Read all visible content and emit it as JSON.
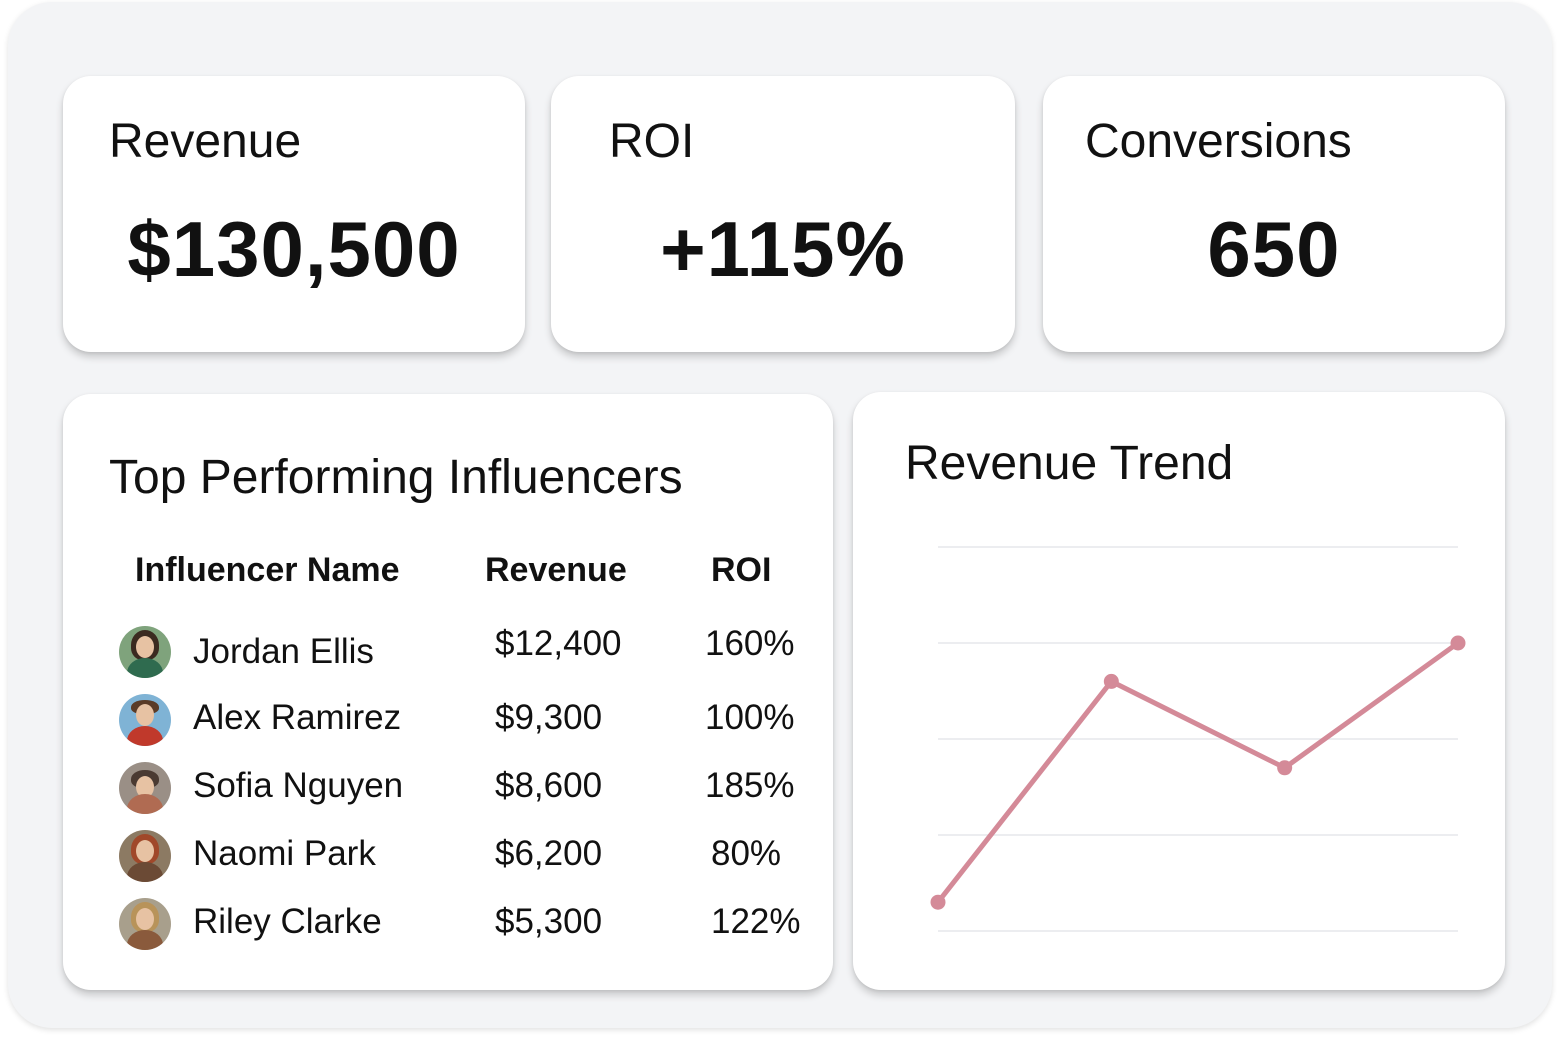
{
  "kpis": {
    "revenue": {
      "label": "Revenue",
      "value": "$130,500"
    },
    "roi": {
      "label": "ROI",
      "value": "+115%"
    },
    "conversions": {
      "label": "Conversions",
      "value": "650"
    }
  },
  "influencers": {
    "title": "Top Performing Influencers",
    "columns": [
      "Influencer Name",
      "Revenue",
      "ROI"
    ],
    "rows": [
      {
        "name": "Jordan Ellis",
        "revenue": "$12,400",
        "roi": "160%",
        "avatar_icon": "woman-curly-hair-avatar"
      },
      {
        "name": "Alex Ramirez",
        "revenue": "$9,300",
        "roi": "100%",
        "avatar_icon": "man-red-shirt-avatar"
      },
      {
        "name": "Sofia Nguyen",
        "revenue": "$8,600",
        "roi": "185%",
        "avatar_icon": "person-road-avatar"
      },
      {
        "name": "Naomi Park",
        "revenue": "$6,200",
        "roi": "80%",
        "avatar_icon": "woman-red-hair-avatar"
      },
      {
        "name": "Riley Clarke",
        "revenue": "$5,300",
        "roi": "122%",
        "avatar_icon": "woman-blonde-avatar"
      }
    ]
  },
  "trend": {
    "title": "Revenue Trend"
  },
  "chart_data": {
    "type": "line",
    "title": "Revenue Trend",
    "xlabel": "",
    "ylabel": "",
    "x": [
      1,
      2,
      3,
      4
    ],
    "series": [
      {
        "values": [
          0.3,
          2.6,
          1.7,
          3.0
        ]
      }
    ],
    "ylim": [
      0,
      4
    ],
    "grid": true,
    "legend": "none",
    "axis_labels_visible": false,
    "color": "#d48a98"
  },
  "colors": {
    "background": "#f3f4f6",
    "card": "#ffffff",
    "line": "#d48a98",
    "gridline": "#e5e7eb"
  }
}
